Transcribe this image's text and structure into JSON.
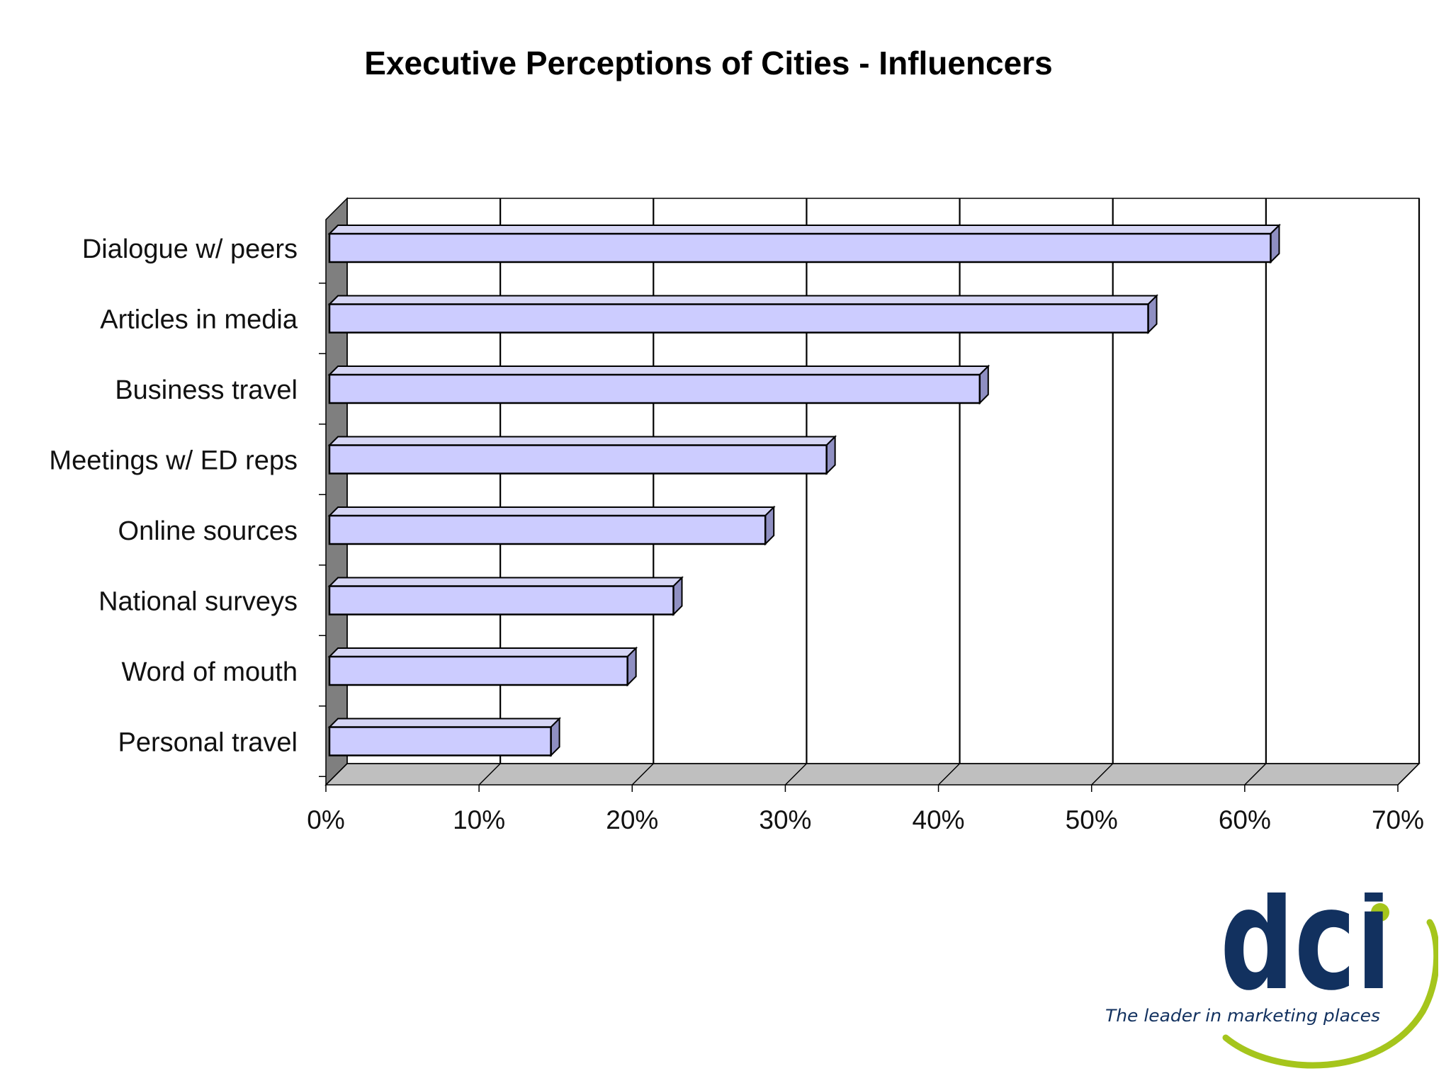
{
  "chart_data": {
    "type": "bar",
    "orientation": "horizontal",
    "style": "3d",
    "title": "Executive Perceptions  of Cities  - Influencers",
    "categories": [
      "Dialogue w/ peers",
      "Articles in media",
      "Business travel",
      "Meetings w/ ED reps",
      "Online sources",
      "National surveys",
      "Word of mouth",
      "Personal travel"
    ],
    "values": [
      61,
      53,
      42,
      32,
      28,
      22,
      19,
      14
    ],
    "xlim": [
      0,
      70
    ],
    "x_ticks": [
      "0%",
      "10%",
      "20%",
      "30%",
      "40%",
      "50%",
      "60%",
      "70%"
    ],
    "xlabel": "",
    "ylabel": "",
    "grid": true,
    "colors": {
      "bar_fill": "#ccccff",
      "bar_top": "#d6d6f5",
      "bar_side": "#8f8fc2",
      "grid": "#000000",
      "wall": "#7f7f7f",
      "floor": "#bfbfbf"
    }
  },
  "logo": {
    "text": "dci",
    "tagline": "The leader in marketing places",
    "colors": {
      "text": "#12315f",
      "accent": "#a5c51c"
    }
  }
}
